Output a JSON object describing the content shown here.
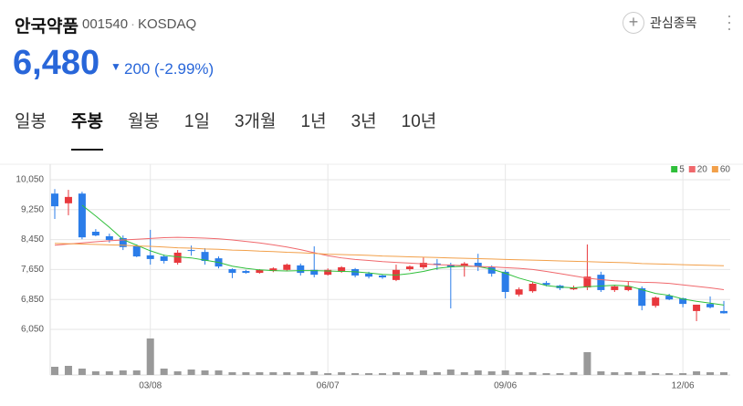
{
  "header": {
    "name": "안국약품",
    "code": "001540",
    "market": "KOSDAQ",
    "watchlist": "관심종목",
    "price": "6,480",
    "change": "200",
    "change_pct": "(-2.99%)"
  },
  "tabs": [
    "일봉",
    "주봉",
    "월봉",
    "1일",
    "3개월",
    "1년",
    "3년",
    "10년"
  ],
  "selected_tab": 1,
  "chart_data": {
    "type": "candlestick",
    "categories": [
      null,
      null,
      null,
      null,
      null,
      null,
      null,
      "03/08",
      null,
      null,
      null,
      null,
      null,
      null,
      null,
      null,
      null,
      null,
      null,
      null,
      "06/07",
      null,
      null,
      null,
      null,
      null,
      null,
      null,
      null,
      null,
      null,
      null,
      null,
      "09/06",
      null,
      null,
      null,
      null,
      null,
      null,
      null,
      null,
      null,
      null,
      null,
      null,
      "12/06",
      null,
      null,
      null
    ],
    "open": [
      9680,
      9420,
      9680,
      8660,
      8540,
      8490,
      8270,
      8030,
      8000,
      7830,
      8170,
      8120,
      7950,
      7660,
      7610,
      7560,
      7610,
      7640,
      7760,
      7640,
      7510,
      7590,
      7660,
      7540,
      7490,
      7370,
      7660,
      7710,
      7810,
      7780,
      7730,
      7830,
      7710,
      7590,
      6980,
      7070,
      7290,
      7220,
      7120,
      7170,
      7510,
      7100,
      7100,
      7150,
      6680,
      6950,
      6880,
      6540,
      6730,
      6540
    ],
    "high": [
      9800,
      9780,
      9730,
      8730,
      8610,
      8560,
      8320,
      8710,
      8050,
      8170,
      8290,
      8220,
      8000,
      7680,
      7640,
      7660,
      7710,
      7810,
      7810,
      8270,
      7680,
      7740,
      7690,
      7590,
      7510,
      7780,
      7760,
      7980,
      7930,
      7830,
      7850,
      8070,
      7760,
      7640,
      7170,
      7320,
      7340,
      7240,
      7220,
      8320,
      7590,
      7220,
      7340,
      7200,
      6930,
      7000,
      6900,
      6710,
      6930,
      6810
    ],
    "low": [
      9000,
      9100,
      8460,
      8540,
      8370,
      8170,
      7980,
      7780,
      7810,
      7780,
      8020,
      7780,
      7680,
      7420,
      7540,
      7540,
      7580,
      7610,
      7490,
      7440,
      7490,
      7560,
      7440,
      7410,
      7400,
      7340,
      7610,
      7660,
      7640,
      6610,
      7460,
      7610,
      7460,
      6880,
      6930,
      7030,
      7200,
      7100,
      7100,
      7100,
      7050,
      7050,
      7070,
      6560,
      6630,
      6830,
      6640,
      6270,
      6610,
      6470
    ],
    "close": [
      9340,
      9590,
      8510,
      8560,
      8440,
      8250,
      8000,
      7930,
      7880,
      8100,
      8150,
      7880,
      7730,
      7560,
      7560,
      7640,
      7680,
      7780,
      7560,
      7510,
      7640,
      7710,
      7490,
      7460,
      7440,
      7640,
      7730,
      7830,
      7780,
      7710,
      7810,
      7730,
      7540,
      7050,
      7120,
      7270,
      7240,
      7150,
      7170,
      7460,
      7100,
      7200,
      7200,
      6680,
      6900,
      6850,
      6730,
      6710,
      6640,
      6480
    ],
    "up_color": "#e8383d",
    "down_color": "#2b7de9",
    "ylim": [
      6050,
      10050
    ],
    "yticks": [
      {
        "value": 10050,
        "label": "10,050"
      },
      {
        "value": 9250,
        "label": "9,250"
      },
      {
        "value": 8450,
        "label": "8,450"
      },
      {
        "value": 7650,
        "label": "7,650"
      },
      {
        "value": 6850,
        "label": "6,850"
      },
      {
        "value": 6050,
        "label": "6,050"
      }
    ],
    "grid": true,
    "series": [
      {
        "name": "5",
        "color": "#2fbf3a",
        "values": [
          null,
          null,
          9370,
          9080,
          8780,
          8450,
          8300,
          8150,
          8030,
          7990,
          7960,
          7900,
          7840,
          7740,
          7680,
          7640,
          7620,
          7610,
          7620,
          7620,
          7610,
          7600,
          7590,
          7560,
          7520,
          7500,
          7540,
          7600,
          7680,
          7720,
          7740,
          7730,
          7660,
          7550,
          7420,
          7320,
          7220,
          7180,
          7160,
          7190,
          7210,
          7230,
          7210,
          7110,
          7010,
          6960,
          6860,
          6800,
          6750,
          6700
        ]
      },
      {
        "name": "20",
        "color": "#f0686c",
        "values": [
          8300,
          8330,
          8360,
          8390,
          8420,
          8440,
          8460,
          8480,
          8500,
          8510,
          8500,
          8490,
          8470,
          8440,
          8400,
          8360,
          8310,
          8250,
          8180,
          8100,
          8020,
          7960,
          7920,
          7890,
          7860,
          7840,
          7820,
          7800,
          7780,
          7770,
          7750,
          7730,
          7720,
          7700,
          7680,
          7650,
          7600,
          7540,
          7480,
          7420,
          7380,
          7350,
          7330,
          7310,
          7300,
          7280,
          7240,
          7200,
          7160,
          7110
        ]
      },
      {
        "name": "60",
        "color": "#f2a04a",
        "values": [
          8350,
          8340,
          8330,
          8320,
          8310,
          8300,
          8280,
          8270,
          8250,
          8230,
          8220,
          8200,
          8190,
          8170,
          8160,
          8140,
          8130,
          8110,
          8100,
          8080,
          8060,
          8050,
          8040,
          8030,
          8010,
          8000,
          7990,
          7980,
          7970,
          7960,
          7950,
          7940,
          7930,
          7920,
          7910,
          7900,
          7890,
          7880,
          7870,
          7860,
          7850,
          7840,
          7830,
          7810,
          7800,
          7790,
          7780,
          7770,
          7760,
          7750
        ]
      }
    ],
    "legend": "top-right",
    "volume": [
      9,
      10,
      7,
      4,
      4,
      5,
      5,
      40,
      7,
      4,
      6,
      5,
      5,
      3,
      3,
      3,
      3,
      3,
      3,
      4,
      2,
      3,
      2,
      2,
      2,
      3,
      3,
      5,
      3,
      6,
      3,
      5,
      4,
      5,
      3,
      3,
      2,
      2,
      3,
      25,
      4,
      3,
      3,
      4,
      2,
      2,
      2,
      4,
      3,
      3
    ],
    "volume_color": "#999999",
    "volume_ylim": [
      0,
      40
    ]
  }
}
